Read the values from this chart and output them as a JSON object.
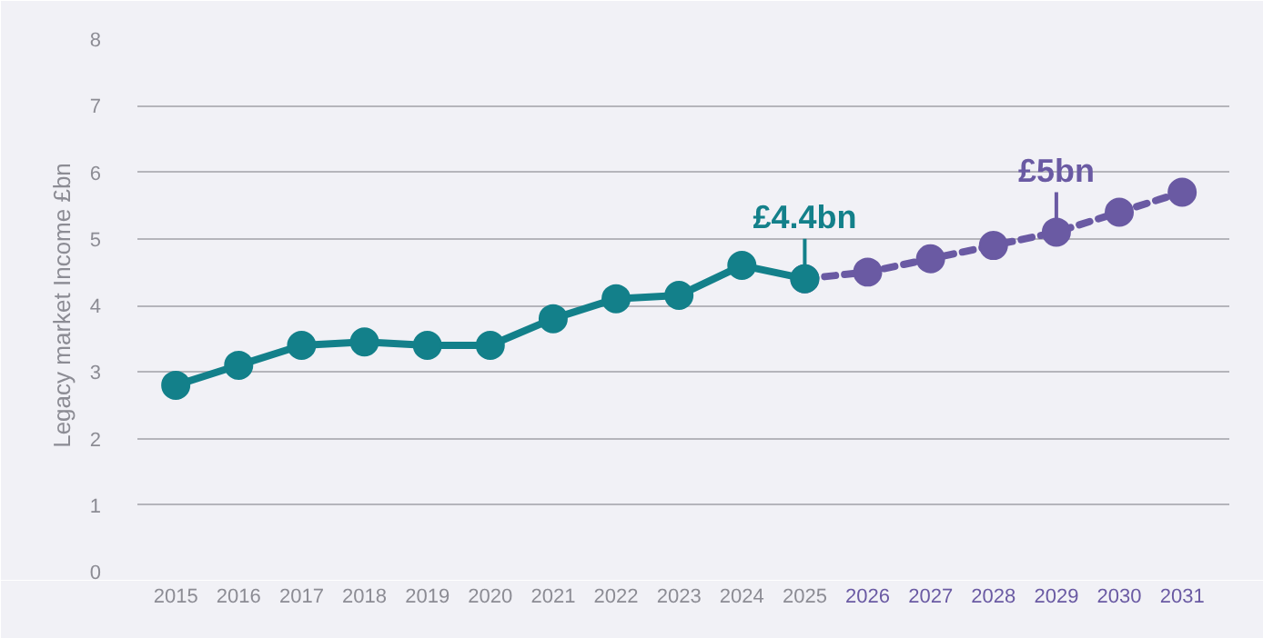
{
  "chart_data": {
    "type": "line",
    "ylabel": "Legacy market Income £bn",
    "categories": [
      "2015",
      "2016",
      "2017",
      "2018",
      "2019",
      "2020",
      "2021",
      "2022",
      "2023",
      "2024",
      "2025",
      "2026",
      "2027",
      "2028",
      "2029",
      "2030",
      "2031"
    ],
    "series": [
      {
        "color": "#13808a",
        "line_style": "solid",
        "values": [
          2.8,
          3.1,
          3.4,
          3.45,
          3.4,
          3.4,
          3.8,
          4.1,
          4.15,
          4.6,
          4.4,
          null,
          null,
          null,
          null,
          null,
          null
        ]
      },
      {
        "color": "#6a5aa3",
        "line_style": "dashed",
        "values": [
          null,
          null,
          null,
          null,
          null,
          null,
          null,
          null,
          null,
          null,
          4.4,
          4.5,
          4.7,
          4.9,
          5.1,
          5.4,
          5.7
        ]
      }
    ],
    "ylim": [
      0,
      8
    ],
    "yticks": [
      0,
      1,
      2,
      3,
      4,
      5,
      6,
      7,
      8
    ],
    "grid": "y",
    "marker": "circle",
    "annotations": [
      {
        "text": "£4.4bn",
        "x": "2025",
        "y": 4.4
      },
      {
        "text": "£5bn",
        "x": "2029",
        "y": 5.1
      }
    ]
  }
}
